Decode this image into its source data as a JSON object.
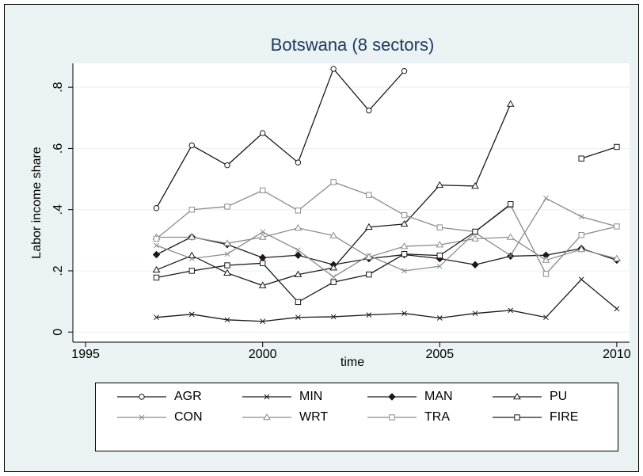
{
  "chart_data": {
    "type": "line",
    "title": "Botswana (8 sectors)",
    "x_label": "time",
    "y_label": "Labor income share",
    "x": [
      1997,
      1998,
      1999,
      2000,
      2001,
      2002,
      2003,
      2004,
      2005,
      2006,
      2007,
      2008,
      2009,
      2010
    ],
    "xlim": [
      1994.64,
      2010.36
    ],
    "xticks": [
      1995,
      2000,
      2005,
      2010
    ],
    "ylim": [
      -0.033,
      0.878
    ],
    "yticks": [
      0,
      {
        "value": 0.2,
        "label": ".2"
      },
      {
        "value": 0.4,
        "label": ".4"
      },
      {
        "value": 0.6,
        "label": ".6"
      },
      {
        "value": 0.8,
        "label": ".8"
      }
    ],
    "grid": true,
    "series": [
      {
        "name": "AGR",
        "color": "#1a1a1a",
        "marker": "circle",
        "values": [
          0.405,
          0.61,
          0.545,
          0.65,
          0.554,
          0.86,
          0.724,
          0.853,
          null,
          null,
          null,
          null,
          null,
          null
        ]
      },
      {
        "name": "MIN",
        "color": "#1a1a1a",
        "marker": "x",
        "values": [
          0.048,
          0.058,
          0.04,
          0.035,
          0.048,
          0.05,
          0.056,
          0.061,
          0.046,
          0.061,
          0.071,
          0.048,
          0.172,
          0.076
        ]
      },
      {
        "name": "MAN",
        "color": "#1a1a1a",
        "marker": "diamond",
        "values": [
          0.253,
          0.311,
          0.286,
          0.243,
          0.251,
          0.22,
          0.24,
          0.253,
          0.24,
          0.22,
          0.248,
          0.251,
          0.273,
          0.235
        ]
      },
      {
        "name": "PU",
        "color": "#1a1a1a",
        "marker": "triangle",
        "values": [
          0.203,
          0.25,
          0.193,
          0.152,
          0.188,
          0.21,
          0.343,
          0.353,
          0.48,
          0.477,
          0.745,
          null,
          null,
          null
        ]
      },
      {
        "name": "CON",
        "color": "#8c8c8c",
        "marker": "x",
        "values": [
          0.283,
          0.24,
          0.255,
          0.327,
          0.268,
          0.18,
          0.25,
          0.2,
          0.215,
          0.325,
          0.25,
          0.437,
          0.377,
          0.345
        ]
      },
      {
        "name": "WRT",
        "color": "#8c8c8c",
        "marker": "triangle",
        "values": [
          0.31,
          0.31,
          0.29,
          0.31,
          0.34,
          0.315,
          0.245,
          0.28,
          0.285,
          0.305,
          0.31,
          0.235,
          0.27,
          0.24
        ]
      },
      {
        "name": "TRA",
        "color": "#8c8c8c",
        "marker": "square",
        "values": [
          0.305,
          0.4,
          0.41,
          0.463,
          0.397,
          0.49,
          0.448,
          0.382,
          0.342,
          0.328,
          0.415,
          0.19,
          0.317,
          0.345
        ]
      },
      {
        "name": "FIRE",
        "color": "#1a1a1a",
        "marker": "square",
        "values": [
          0.178,
          0.2,
          0.218,
          0.225,
          0.098,
          0.163,
          0.188,
          0.255,
          0.25,
          0.328,
          0.418,
          null,
          0.567,
          0.605
        ]
      }
    ]
  }
}
